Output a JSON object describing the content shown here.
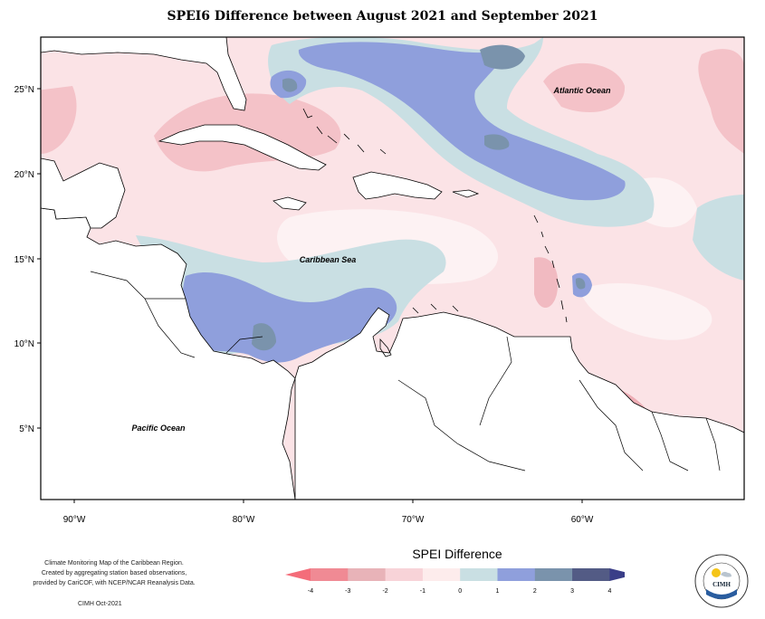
{
  "title": "SPEI6 Difference between August 2021 and September 2021",
  "map_labels": {
    "atlantic": "Atlantic Ocean",
    "caribbean": "Caribbean Sea",
    "pacific": "Pacific Ocean"
  },
  "axes": {
    "lat_ticks": [
      "25°N",
      "20°N",
      "15°N",
      "10°N",
      "5°N"
    ],
    "lon_ticks": [
      "90°W",
      "80°W",
      "70°W",
      "60°W"
    ]
  },
  "credit_lines": [
    "Climate Monitoring Map of the Caribbean Region.",
    "Created by aggregating station based observations,",
    "provided by CariCOF, with NCEP/NCAR Reanalysis Data."
  ],
  "credit_date": "CIMH Oct-2021",
  "legend": {
    "title": "SPEI Difference",
    "ticks": [
      "-4",
      "-3",
      "-2",
      "-1",
      "0",
      "1",
      "2",
      "3",
      "4"
    ],
    "colors": [
      "#f08a94",
      "#e8b3b8",
      "#f8d3d8",
      "#fdecec",
      "#c9dfe3",
      "#8f9fdc",
      "#7a93ac",
      "#535b85"
    ],
    "arrow_left_color": "#f46d7a",
    "arrow_right_color": "#3a3e88"
  },
  "logo": {
    "text": "CIMH",
    "ring_text": "Caribbean Institute for Meteorology and Hydrology"
  }
}
